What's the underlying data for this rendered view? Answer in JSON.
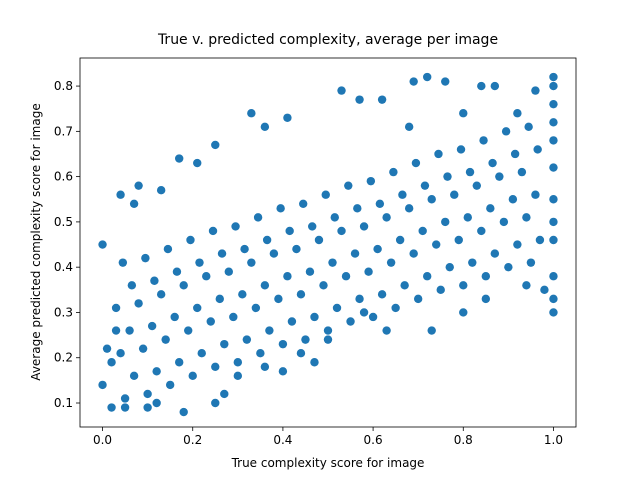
{
  "chart_data": {
    "type": "scatter",
    "title": "True v. predicted complexity, average per image",
    "x_label": "True complexity score for image",
    "y_label": "Average predicted complexity score for image",
    "color": "#1f77b4",
    "xlim": [
      -0.05,
      1.05
    ],
    "ylim": [
      0.047,
      0.862
    ],
    "xticks": [
      {
        "value": 0,
        "label": "0.0"
      },
      0.2,
      0.4,
      0.6,
      0.8,
      {
        "value": 1,
        "label": "1.0"
      }
    ],
    "yticks": [
      0.1,
      0.2,
      0.3,
      0.4,
      0.5,
      0.6,
      0.7,
      0.8
    ],
    "x": [
      0.05,
      0.07,
      0.04,
      0.06,
      0.03,
      0.065,
      0.045,
      0.1,
      0.12,
      0.09,
      0.11,
      0.08,
      0.115,
      0.095,
      0.15,
      0.17,
      0.14,
      0.16,
      0.13,
      0.165,
      0.145,
      0.2,
      0.22,
      0.19,
      0.21,
      0.18,
      0.215,
      0.195,
      0.25,
      0.27,
      0.24,
      0.26,
      0.23,
      0.265,
      0.245,
      0.3,
      0.32,
      0.29,
      0.31,
      0.28,
      0.315,
      0.295,
      0.35,
      0.37,
      0.34,
      0.36,
      0.33,
      0.365,
      0.345,
      0.4,
      0.42,
      0.39,
      0.41,
      0.38,
      0.415,
      0.395,
      0.45,
      0.47,
      0.44,
      0.46,
      0.43,
      0.465,
      0.445,
      0.5,
      0.52,
      0.49,
      0.51,
      0.48,
      0.515,
      0.495,
      0.55,
      0.57,
      0.54,
      0.56,
      0.53,
      0.565,
      0.545,
      0.6,
      0.62,
      0.59,
      0.61,
      0.58,
      0.615,
      0.595,
      0.65,
      0.67,
      0.64,
      0.66,
      0.63,
      0.665,
      0.645,
      0.7,
      0.72,
      0.69,
      0.71,
      0.68,
      0.715,
      0.695,
      0.75,
      0.77,
      0.74,
      0.76,
      0.73,
      0.765,
      0.745,
      0.8,
      0.82,
      0.79,
      0.81,
      0.78,
      0.815,
      0.795,
      0.85,
      0.87,
      0.84,
      0.86,
      0.83,
      0.865,
      0.845,
      0.9,
      0.92,
      0.89,
      0.91,
      0.88,
      0.915,
      0.895,
      0.95,
      0.97,
      0.94,
      0.96,
      0.93,
      0.965,
      0.945,
      0.0,
      0.0,
      0.02,
      0.04,
      0.07,
      0.08,
      0.13,
      0.17,
      0.21,
      0.25,
      0.33,
      0.36,
      0.41,
      0.53,
      0.57,
      0.62,
      0.68,
      0.69,
      0.72,
      0.76,
      0.8,
      0.84,
      0.87,
      0.92,
      0.96,
      1.0,
      1.0,
      1.0,
      1.0,
      1.0,
      1.0,
      1.0,
      1.0,
      1.0,
      1.0,
      1.0,
      1.0,
      0.98,
      0.94,
      0.85,
      0.8,
      0.73,
      0.63,
      0.58,
      0.5,
      0.47,
      0.4,
      0.3,
      0.25,
      0.18,
      0.1,
      0.05,
      0.02,
      0.03,
      0.01,
      0.36,
      0.44,
      0.27,
      0.12
    ],
    "values": [
      0.11,
      0.16,
      0.21,
      0.26,
      0.31,
      0.36,
      0.41,
      0.12,
      0.17,
      0.22,
      0.27,
      0.32,
      0.37,
      0.42,
      0.14,
      0.19,
      0.24,
      0.29,
      0.34,
      0.39,
      0.44,
      0.16,
      0.21,
      0.26,
      0.31,
      0.36,
      0.41,
      0.46,
      0.18,
      0.23,
      0.28,
      0.33,
      0.38,
      0.43,
      0.48,
      0.19,
      0.24,
      0.29,
      0.34,
      0.39,
      0.44,
      0.49,
      0.21,
      0.26,
      0.31,
      0.36,
      0.41,
      0.46,
      0.51,
      0.23,
      0.28,
      0.33,
      0.38,
      0.43,
      0.48,
      0.53,
      0.24,
      0.29,
      0.34,
      0.39,
      0.44,
      0.49,
      0.54,
      0.26,
      0.31,
      0.36,
      0.41,
      0.46,
      0.51,
      0.56,
      0.28,
      0.33,
      0.38,
      0.43,
      0.48,
      0.53,
      0.58,
      0.29,
      0.34,
      0.39,
      0.44,
      0.49,
      0.54,
      0.59,
      0.31,
      0.36,
      0.41,
      0.46,
      0.51,
      0.56,
      0.61,
      0.33,
      0.38,
      0.43,
      0.48,
      0.53,
      0.58,
      0.63,
      0.35,
      0.4,
      0.45,
      0.5,
      0.55,
      0.6,
      0.65,
      0.36,
      0.41,
      0.46,
      0.51,
      0.56,
      0.61,
      0.66,
      0.38,
      0.43,
      0.48,
      0.53,
      0.58,
      0.63,
      0.68,
      0.4,
      0.45,
      0.5,
      0.55,
      0.6,
      0.65,
      0.7,
      0.41,
      0.46,
      0.51,
      0.56,
      0.61,
      0.66,
      0.71,
      0.45,
      0.14,
      0.09,
      0.56,
      0.54,
      0.58,
      0.57,
      0.64,
      0.63,
      0.67,
      0.74,
      0.71,
      0.73,
      0.79,
      0.77,
      0.77,
      0.71,
      0.81,
      0.82,
      0.81,
      0.74,
      0.8,
      0.8,
      0.74,
      0.79,
      0.82,
      0.8,
      0.76,
      0.72,
      0.68,
      0.62,
      0.55,
      0.5,
      0.46,
      0.38,
      0.33,
      0.3,
      0.35,
      0.36,
      0.33,
      0.3,
      0.26,
      0.26,
      0.3,
      0.24,
      0.19,
      0.17,
      0.16,
      0.1,
      0.08,
      0.09,
      0.09,
      0.19,
      0.26,
      0.22,
      0.18,
      0.21,
      0.12,
      0.1
    ]
  }
}
